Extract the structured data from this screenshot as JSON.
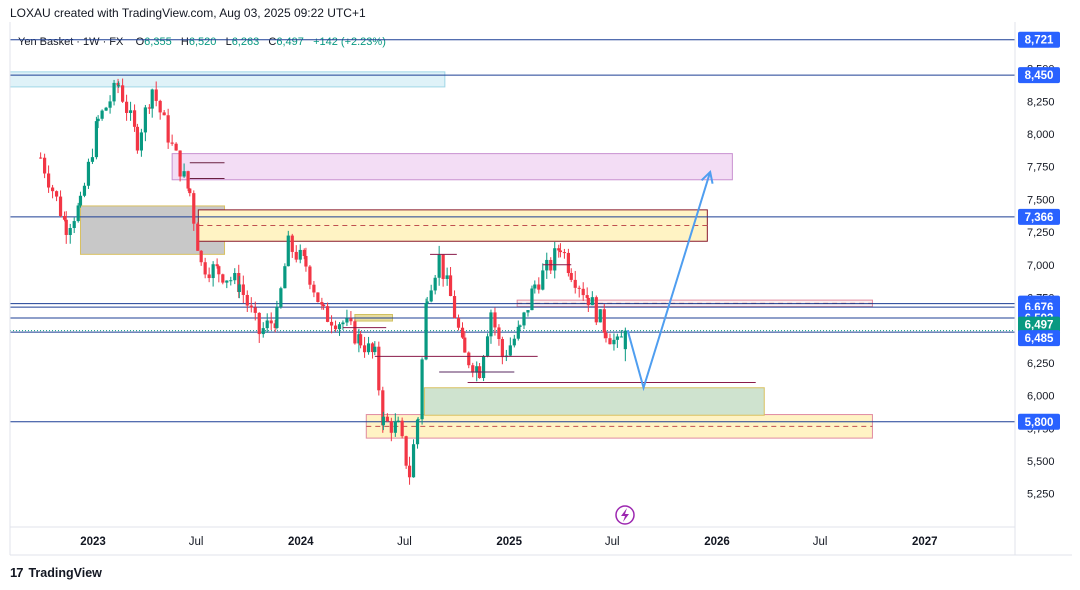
{
  "header": {
    "credit": "LOXAU created with TradingView.com, Aug 03, 2025 09:22 UTC+1"
  },
  "legend": {
    "symbol": "Yen Basket · 1W · FX",
    "open_label": "O",
    "open": "6,355",
    "high_label": "H",
    "high": "6,520",
    "low_label": "L",
    "low": "6,263",
    "close_label": "C",
    "close": "6,497",
    "change": "+142 (+2.23%)"
  },
  "footer": {
    "logo": "17",
    "brand": "TradingView"
  },
  "colors": {
    "up": "#089981",
    "down": "#f23645",
    "price_tag": "#2962ff",
    "current_tag": "#089981",
    "hline": "#1c3f95",
    "arrow": "#4f9ef0",
    "yellow_zone": "#fff3c4",
    "purple_zone": "#f3ddf5",
    "green_zone": "#cfe3cf",
    "grey_zone": "#c8c8c8",
    "cyan_zone": "#dff2f8"
  },
  "icons": {
    "lightning": "lightning-icon",
    "logo": "tradingview-logo-icon"
  },
  "chart_data": {
    "type": "candlestick",
    "title": "",
    "ylim": [
      5050,
      8800
    ],
    "y_ticks": [
      "8,750",
      "8,500",
      "8,250",
      "8,000",
      "7,750",
      "7,500",
      "7,250",
      "7,000",
      "6,750",
      "6,500",
      "6,250",
      "6,000",
      "5,750",
      "5,500",
      "5,250"
    ],
    "y_tick_values": [
      8750,
      8500,
      8250,
      8000,
      7750,
      7500,
      7250,
      7000,
      6750,
      6500,
      6250,
      6000,
      5750,
      5500,
      5250
    ],
    "x_ticks": [
      "2023",
      "Jul",
      "2024",
      "Jul",
      "2025",
      "Jul",
      "2026",
      "Jul",
      "2027"
    ],
    "x_tick_values": [
      "2023-01-01",
      "2023-07-01",
      "2024-01-01",
      "2024-07-01",
      "2025-01-01",
      "2025-07-01",
      "2026-01-01",
      "2026-07-01",
      "2027-01-01"
    ],
    "price_tags": [
      {
        "label": "8,721",
        "value": 8721,
        "kind": "line"
      },
      {
        "label": "8,450",
        "value": 8450,
        "kind": "line"
      },
      {
        "label": "7,366",
        "value": 7366,
        "kind": "line"
      },
      {
        "label": "6,703",
        "value": 6703,
        "kind": "line"
      },
      {
        "label": "6,676",
        "value": 6676,
        "kind": "line"
      },
      {
        "label": "6,593",
        "value": 6593,
        "kind": "line"
      },
      {
        "label": "6,497",
        "value": 6497,
        "kind": "current"
      },
      {
        "label": "6,485",
        "value": 6485,
        "kind": "line"
      },
      {
        "label": "5,800",
        "value": 5800,
        "kind": "line"
      }
    ],
    "anchors": [
      {
        "date": "2022-10-01",
        "close": 7820
      },
      {
        "date": "2022-11-15",
        "close": 7300
      },
      {
        "date": "2022-12-10",
        "close": 7450
      },
      {
        "date": "2023-01-10",
        "close": 8100
      },
      {
        "date": "2023-02-15",
        "close": 8380
      },
      {
        "date": "2023-03-20",
        "close": 7950
      },
      {
        "date": "2023-04-15",
        "close": 8350
      },
      {
        "date": "2023-05-20",
        "close": 7900
      },
      {
        "date": "2023-06-20",
        "close": 7550
      },
      {
        "date": "2023-07-10",
        "close": 7000
      },
      {
        "date": "2023-08-10",
        "close": 6950
      },
      {
        "date": "2023-09-15",
        "close": 6850
      },
      {
        "date": "2023-10-20",
        "close": 6480
      },
      {
        "date": "2023-11-20",
        "close": 6600
      },
      {
        "date": "2023-12-10",
        "close": 7150
      },
      {
        "date": "2024-01-10",
        "close": 7000
      },
      {
        "date": "2024-02-10",
        "close": 6620
      },
      {
        "date": "2024-03-15",
        "close": 6560
      },
      {
        "date": "2024-04-15",
        "close": 6420
      },
      {
        "date": "2024-05-10",
        "close": 6300
      },
      {
        "date": "2024-05-25",
        "close": 5800
      },
      {
        "date": "2024-06-20",
        "close": 5750
      },
      {
        "date": "2024-07-10",
        "close": 5400
      },
      {
        "date": "2024-07-25",
        "close": 5850
      },
      {
        "date": "2024-08-10",
        "close": 6800
      },
      {
        "date": "2024-08-31",
        "close": 7050
      },
      {
        "date": "2024-09-20",
        "close": 6750
      },
      {
        "date": "2024-10-15",
        "close": 6300
      },
      {
        "date": "2024-11-10",
        "close": 6200
      },
      {
        "date": "2024-11-30",
        "close": 6650
      },
      {
        "date": "2024-12-20",
        "close": 6300
      },
      {
        "date": "2025-01-20",
        "close": 6500
      },
      {
        "date": "2025-02-15",
        "close": 6850
      },
      {
        "date": "2025-03-15",
        "close": 7000
      },
      {
        "date": "2025-04-01",
        "close": 7150
      },
      {
        "date": "2025-04-20",
        "close": 6950
      },
      {
        "date": "2025-05-20",
        "close": 6750
      },
      {
        "date": "2025-06-20",
        "close": 6500
      },
      {
        "date": "2025-07-10",
        "close": 6380
      },
      {
        "date": "2025-07-28",
        "close": 6497
      }
    ],
    "last_candle": {
      "open": 6355,
      "high": 6520,
      "low": 6263,
      "close": 6497
    },
    "projection": {
      "points": [
        {
          "date": "2025-07-28",
          "value": 6500
        },
        {
          "date": "2025-08-25",
          "value": 6060
        },
        {
          "date": "2025-12-20",
          "value": 7710
        }
      ]
    }
  }
}
